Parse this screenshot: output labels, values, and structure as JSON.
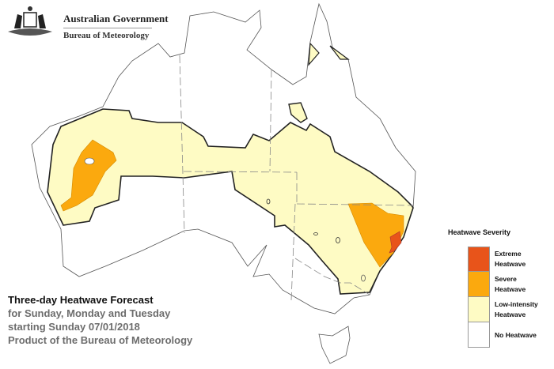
{
  "header": {
    "government": "Australian Government",
    "agency": "Bureau of Meteorology",
    "logo": "commonwealth-coat-of-arms"
  },
  "forecast": {
    "title": "Three-day Heatwave Forecast",
    "days_line": "for Sunday, Monday and Tuesday",
    "start_line": "starting Sunday 07/01/2018",
    "product_line": "Product of the Bureau of Meteorology"
  },
  "legend": {
    "title": "Heatwave Severity",
    "items": [
      {
        "line1": "Extreme",
        "line2": "Heatwave",
        "color": "#e8541a"
      },
      {
        "line1": "Severe",
        "line2": "Heatwave",
        "color": "#fba90e"
      },
      {
        "line1": "Low-intensity",
        "line2": "Heatwave",
        "color": "#fefbc4"
      },
      {
        "line1": "No Heatwave",
        "line2": "",
        "color": "#ffffff"
      }
    ]
  },
  "map": {
    "region": "Australia",
    "severity_areas": [
      {
        "area": "Western Australia interior",
        "level": "Severe Heatwave"
      },
      {
        "area": "Northern New South Wales",
        "level": "Severe Heatwave"
      },
      {
        "area": "Hunter / Sydney region",
        "level": "Extreme Heatwave"
      },
      {
        "area": "Central band WA to NSW / Victoria",
        "level": "Low-intensity Heatwave"
      }
    ]
  }
}
